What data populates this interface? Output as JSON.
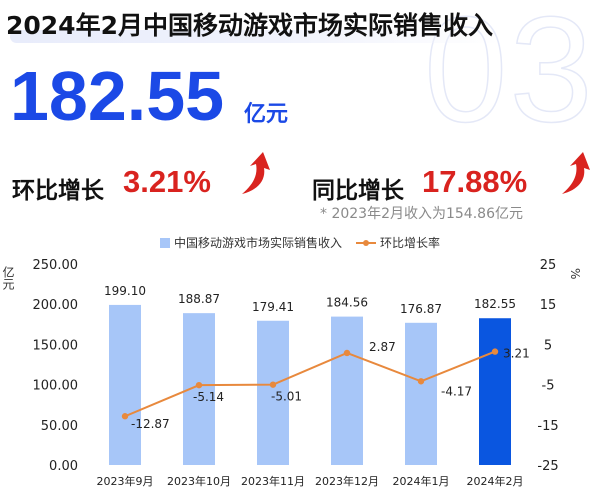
{
  "watermark": "03",
  "title": "2024年2月中国移动游戏市场实际销售收入",
  "headline": {
    "value": "182.55",
    "unit": "亿元"
  },
  "kpis": {
    "mom_label": "环比增长",
    "mom_value": "3.21%",
    "yoy_label": "同比增长",
    "yoy_value": "17.88%"
  },
  "note": "* 2023年2月收入为154.86亿元",
  "colors": {
    "accent_blue": "#1b49e6",
    "bar_light": "#a7c6f8",
    "bar_highlight": "#0a56e0",
    "line_orange": "#e8893d",
    "kpi_red": "#d9231f"
  },
  "chart_data": {
    "type": "bar+line",
    "categories": [
      "2023年9月",
      "2023年10月",
      "2023年11月",
      "2023年12月",
      "2024年1月",
      "2024年2月"
    ],
    "series": [
      {
        "name": "中国移动游戏市场实际销售收入",
        "kind": "bar",
        "axis": "left",
        "values": [
          199.1,
          188.87,
          179.41,
          184.56,
          176.87,
          182.55
        ],
        "labels": [
          "199.10",
          "188.87",
          "179.41",
          "184.56",
          "176.87",
          "182.55"
        ]
      },
      {
        "name": "环比增长率",
        "kind": "line",
        "axis": "right",
        "values": [
          -12.87,
          -5.14,
          -5.01,
          2.87,
          -4.17,
          3.21
        ],
        "labels": [
          "-12.87",
          "-5.14",
          "-5.01",
          "2.87",
          "-4.17",
          "3.21"
        ]
      }
    ],
    "left_axis": {
      "label": "亿元",
      "ylim": [
        0,
        250
      ],
      "ticks": [
        "250.00",
        "200.00",
        "150.00",
        "100.00",
        "50.00",
        "0.00"
      ]
    },
    "right_axis": {
      "label": "%",
      "ylim": [
        -25,
        25
      ],
      "ticks": [
        "25",
        "15",
        "5",
        "-5",
        "-15",
        "-25"
      ]
    },
    "highlight_category": "2024年2月",
    "legend_position": "top",
    "grid": false
  }
}
